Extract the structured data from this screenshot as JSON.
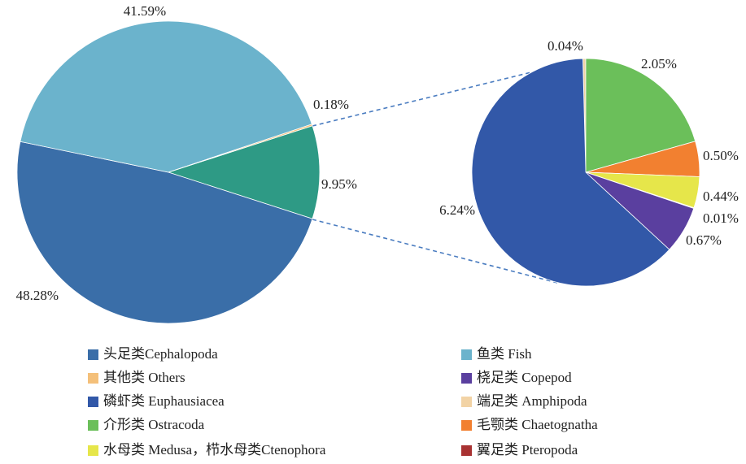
{
  "chart_data": [
    {
      "type": "pie",
      "categories": [
        null,
        "头足类Cephalopoda",
        "鱼类 Fish",
        "其他类 Others"
      ],
      "values": [
        9.95,
        48.28,
        41.59,
        0.18
      ],
      "value_labels": [
        "9.95%",
        "48.28%",
        "41.59%",
        "0.18%"
      ],
      "colors": [
        "#2e9a85",
        "#3a6ea8",
        "#6bb3cc",
        "#f4c07a"
      ]
    },
    {
      "type": "pie",
      "categories": [
        "端足类 Amphipoda",
        "介形类 Ostracoda",
        "毛颚类 Chaetognatha",
        "水母类 Medusa，栉水母类Ctenophora",
        "翼足类 Pteropoda",
        "桡足类 Copepod",
        "磷虾类 Euphausiacea"
      ],
      "values": [
        0.04,
        2.05,
        0.5,
        0.44,
        0.01,
        0.67,
        6.24
      ],
      "value_labels": [
        "0.04%",
        "2.05%",
        "0.50%",
        "0.44%",
        "0.01%",
        "0.67%",
        "6.24%"
      ],
      "colors": [
        "#f2d3a5",
        "#6bbf5a",
        "#f28030",
        "#e6e64a",
        "#a83232",
        "#5a3f9f",
        "#3258a8"
      ]
    }
  ]
}
